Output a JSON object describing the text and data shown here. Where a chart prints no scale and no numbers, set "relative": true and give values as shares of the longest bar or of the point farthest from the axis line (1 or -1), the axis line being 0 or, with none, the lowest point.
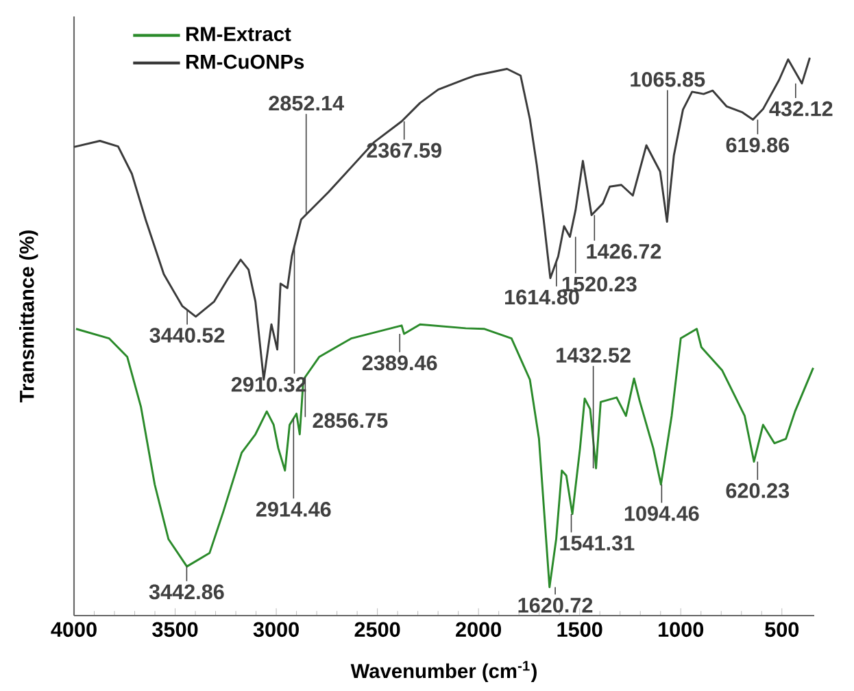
{
  "chart_data": {
    "type": "line",
    "xlabel": "Wavenumber (cm$^{-1}$)",
    "ylabel": "Transmittance (%)",
    "relative": true,
    "xlim": [
      4000,
      340
    ],
    "xticks": [
      4000,
      3500,
      3000,
      2500,
      2000,
      1500,
      1000,
      500
    ],
    "legend": "top left",
    "series": [
      {
        "name": "RM-Extract",
        "color": "#2a8a2a",
        "x": [
          3990,
          3827,
          3737,
          3669,
          3601,
          3533,
          3442,
          3330,
          3262,
          3171,
          3103,
          3047,
          3013,
          2990,
          2957,
          2934,
          2900,
          2884,
          2866,
          2787,
          2628,
          2380,
          2368,
          2289,
          2063,
          1973,
          1837,
          1746,
          1701,
          1649,
          1616,
          1588,
          1566,
          1536,
          1498,
          1475,
          1448,
          1419,
          1396,
          1317,
          1271,
          1231,
          1204,
          1136,
          1098,
          1045,
          1000,
          921,
          898,
          796,
          684,
          638,
          593,
          537,
          480,
          435,
          345
        ],
        "values": [
          0.514,
          0.497,
          0.464,
          0.374,
          0.235,
          0.137,
          0.088,
          0.112,
          0.186,
          0.292,
          0.325,
          0.366,
          0.342,
          0.3,
          0.26,
          0.342,
          0.362,
          0.325,
          0.423,
          0.464,
          0.497,
          0.52,
          0.505,
          0.522,
          0.515,
          0.514,
          0.497,
          0.423,
          0.317,
          0.051,
          0.137,
          0.26,
          0.251,
          0.182,
          0.3,
          0.389,
          0.37,
          0.264,
          0.383,
          0.391,
          0.358,
          0.425,
          0.386,
          0.3,
          0.235,
          0.358,
          0.497,
          0.514,
          0.481,
          0.44,
          0.358,
          0.276,
          0.342,
          0.309,
          0.317,
          0.366,
          0.444
        ]
      },
      {
        "name": "RM-CuONPs",
        "color": "#3a3a3a",
        "x": [
          4000,
          3872,
          3782,
          3714,
          3646,
          3556,
          3465,
          3398,
          3307,
          3239,
          3176,
          3137,
          3103,
          3062,
          3024,
          2995,
          2979,
          2945,
          2923,
          2877,
          2742,
          2515,
          2380,
          2289,
          2199,
          2063,
          2018,
          1859,
          1792,
          1746,
          1712,
          1678,
          1645,
          1606,
          1577,
          1548,
          1520,
          1484,
          1441,
          1385,
          1351,
          1294,
          1237,
          1170,
          1102,
          1068,
          1034,
          989,
          944,
          887,
          842,
          774,
          695,
          643,
          593,
          514,
          469,
          401,
          362
        ],
        "values": [
          0.84,
          0.851,
          0.841,
          0.792,
          0.71,
          0.612,
          0.555,
          0.536,
          0.563,
          0.604,
          0.638,
          0.62,
          0.563,
          0.423,
          0.522,
          0.477,
          0.595,
          0.587,
          0.644,
          0.71,
          0.759,
          0.849,
          0.886,
          0.919,
          0.943,
          0.962,
          0.968,
          0.98,
          0.968,
          0.89,
          0.808,
          0.71,
          0.605,
          0.644,
          0.698,
          0.679,
          0.727,
          0.815,
          0.718,
          0.739,
          0.769,
          0.772,
          0.753,
          0.843,
          0.796,
          0.706,
          0.825,
          0.907,
          0.939,
          0.935,
          0.941,
          0.913,
          0.902,
          0.889,
          0.908,
          0.96,
          0.997,
          0.954,
          1.0
        ]
      }
    ],
    "annotations": [
      {
        "text": "3440.52",
        "x": 3440.52,
        "y": 0.548
      },
      {
        "text": "2910.32",
        "x": 2910.32,
        "y": 0.663
      },
      {
        "text": "2852.14",
        "x": 2852.14,
        "y": 0.719
      },
      {
        "text": "2367.59",
        "x": 2367.59,
        "y": 0.886
      },
      {
        "text": "1614.80",
        "x": 1614.8,
        "y": 0.636
      },
      {
        "text": "1520.23",
        "x": 1520.23,
        "y": 0.679
      },
      {
        "text": "1426.72",
        "x": 1426.72,
        "y": 0.718
      },
      {
        "text": "1065.85",
        "x": 1065.85,
        "y": 0.706
      },
      {
        "text": "619.86",
        "x": 619.86,
        "y": 0.889
      },
      {
        "text": "432.12",
        "x": 432.12,
        "y": 0.954
      },
      {
        "text": "3442.86",
        "x": 3442.86,
        "y": 0.088
      },
      {
        "text": "2914.46",
        "x": 2914.46,
        "y": 0.354
      },
      {
        "text": "2856.75",
        "x": 2856.75,
        "y": 0.428
      },
      {
        "text": "2389.46",
        "x": 2389.46,
        "y": 0.505
      },
      {
        "text": "1620.72",
        "x": 1620.72,
        "y": 0.051
      },
      {
        "text": "1541.31",
        "x": 1541.31,
        "y": 0.182
      },
      {
        "text": "1432.52",
        "x": 1432.52,
        "y": 0.264
      },
      {
        "text": "1094.46",
        "x": 1094.46,
        "y": 0.235
      },
      {
        "text": "620.23",
        "x": 620.23,
        "y": 0.276
      }
    ]
  }
}
